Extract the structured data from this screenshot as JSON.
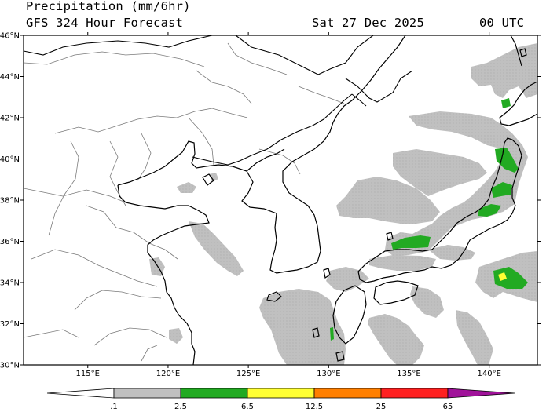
{
  "header": {
    "title": "Precipitation (mm/6hr)",
    "subtitle": "GFS 324 Hour Forecast",
    "valid_time": "Sat 27 Dec 2025",
    "utc": "00 UTC"
  },
  "map": {
    "projection": "cylindrical lat-lon",
    "lon_range": [
      111,
      143
    ],
    "lat_range": [
      30,
      46
    ],
    "lat_ticks": [
      "30°N",
      "32°N",
      "34°N",
      "36°N",
      "38°N",
      "40°N",
      "42°N",
      "44°N",
      "46°N"
    ],
    "lon_ticks": [
      "115°E",
      "120°E",
      "125°E",
      "130°E",
      "135°E",
      "140°E"
    ],
    "features": [
      "coastlines",
      "national borders",
      "provincial borders"
    ],
    "colors": {
      "background": "#ffffff",
      "land_lines": "#000000",
      "admin_lines": "#666666",
      "precip_light": "#c0c0c0",
      "precip_moderate": "#22aa22",
      "precip_heavy": "#ffff33"
    }
  },
  "legend": {
    "title": "Precipitation (mm/6hr)",
    "tick_labels": [
      ".1",
      "2.5",
      "6.5",
      "12.5",
      "25",
      "65"
    ],
    "bins": [
      {
        "from": 0,
        "to": 0.1,
        "color": "#ffffff"
      },
      {
        "from": 0.1,
        "to": 2.5,
        "color": "#c0c0c0"
      },
      {
        "from": 2.5,
        "to": 6.5,
        "color": "#22aa22"
      },
      {
        "from": 6.5,
        "to": 12.5,
        "color": "#ffff33"
      },
      {
        "from": 12.5,
        "to": 25,
        "color": "#ff7f00"
      },
      {
        "from": 25,
        "to": 65,
        "color": "#ff2020"
      },
      {
        "from": 65,
        "to": 100,
        "color": "#a0129a"
      }
    ]
  }
}
